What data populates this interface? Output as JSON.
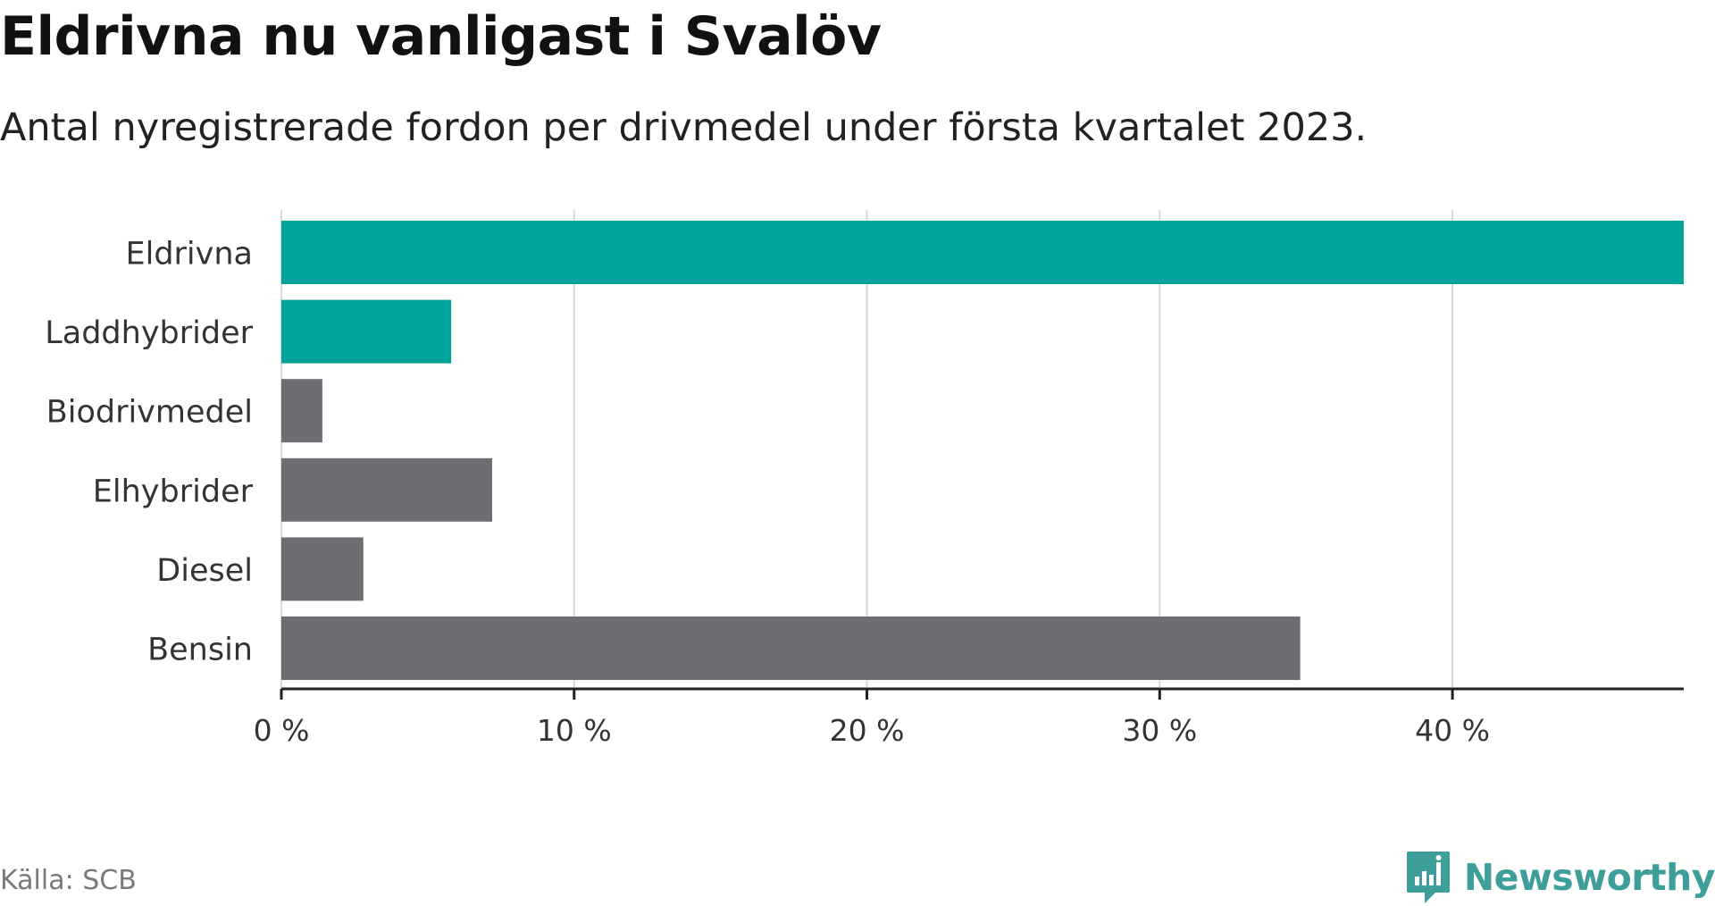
{
  "header": {
    "title": "Eldrivna nu vanligast i Svalöv",
    "subtitle": "Antal nyregistrerade fordon per drivmedel under första kvartalet 2023."
  },
  "footer": {
    "source": "Källa: SCB",
    "brand": "Newsworthy"
  },
  "colors": {
    "highlight": "#00a49a",
    "default": "#6e6d74",
    "grid": "#d8d8d8",
    "axis": "#222222",
    "brand": "#3e9e9a"
  },
  "chart_data": {
    "type": "bar",
    "orientation": "horizontal",
    "categories": [
      "Eldrivna",
      "Laddhybrider",
      "Biodrivmedel",
      "Elhybrider",
      "Diesel",
      "Bensin"
    ],
    "values": [
      47.9,
      5.8,
      1.4,
      7.2,
      2.8,
      34.8
    ],
    "highlighted": [
      true,
      true,
      false,
      false,
      false,
      false
    ],
    "xlim": [
      0,
      47.9
    ],
    "xticks": [
      0,
      10,
      20,
      30,
      40
    ],
    "xtick_labels": [
      "0 %",
      "10 %",
      "20 %",
      "30 %",
      "40 %"
    ],
    "grid": true,
    "xlabel": "",
    "ylabel": ""
  }
}
